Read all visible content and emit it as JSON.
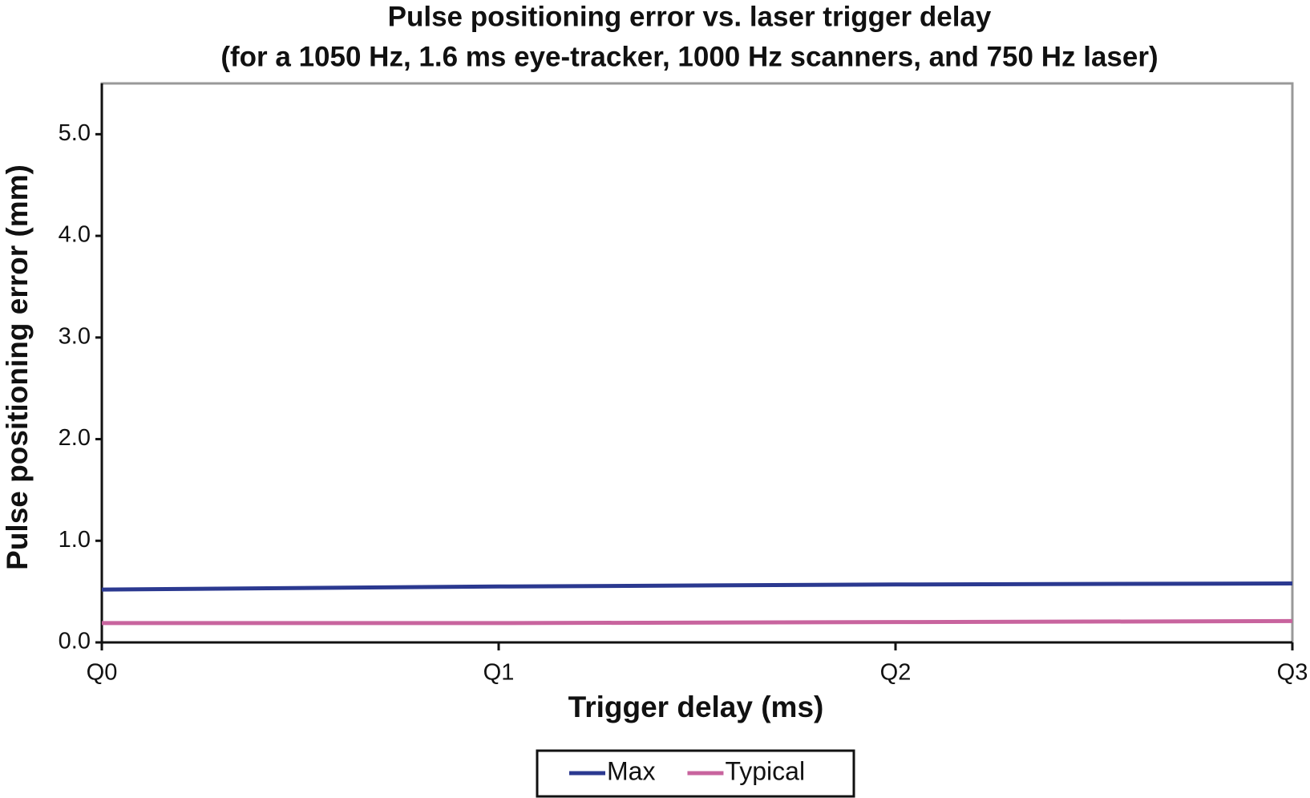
{
  "chart_data": {
    "type": "line",
    "title": "Pulse positioning error vs. laser trigger delay",
    "subtitle": "(for a 1050 Hz, 1.6 ms eye-tracker, 1000 Hz scanners, and 750 Hz laser)",
    "x_label": "Trigger delay (ms)",
    "y_label": "Pulse positioning error (mm)",
    "categories": [
      "Q0",
      "Q1",
      "Q2",
      "Q3"
    ],
    "series": [
      {
        "name": "Max",
        "color": "#2b3990",
        "values": [
          0.52,
          0.55,
          0.57,
          0.58
        ]
      },
      {
        "name": "Typical",
        "color": "#c8649e",
        "values": [
          0.19,
          0.19,
          0.2,
          0.21
        ]
      }
    ],
    "ylim": [
      0,
      5.5
    ],
    "yticks": [
      {
        "value": 0,
        "label": "0.0"
      },
      {
        "value": 1,
        "label": "1.0"
      },
      {
        "value": 2,
        "label": "2.0"
      },
      {
        "value": 3,
        "label": "3.0"
      },
      {
        "value": 4,
        "label": "4.0"
      },
      {
        "value": 5,
        "label": "5.0"
      }
    ],
    "grid": false,
    "legend": "bottom"
  }
}
